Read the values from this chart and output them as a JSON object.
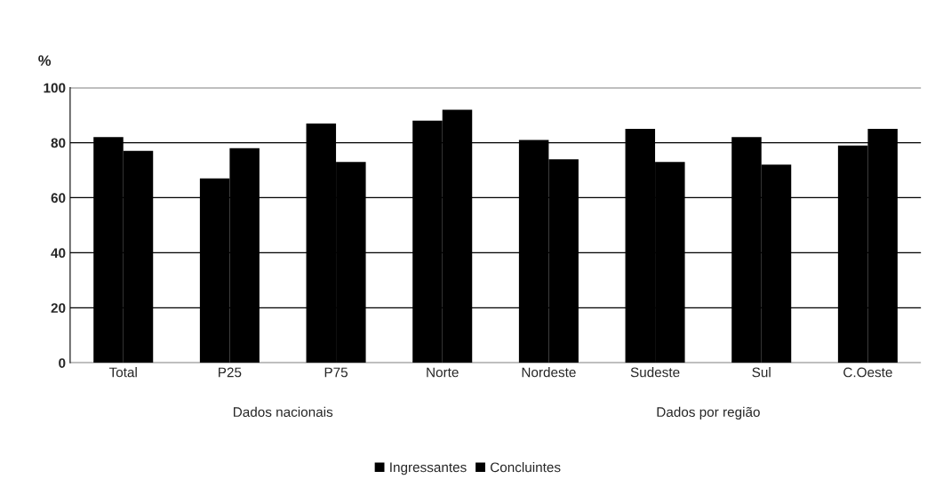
{
  "chart_data": {
    "type": "bar",
    "ylabel": "%",
    "categories": [
      "Total",
      "P25",
      "P75",
      "Norte",
      "Nordeste",
      "Sudeste",
      "Sul",
      "C.Oeste"
    ],
    "series": [
      {
        "name": "Ingressantes",
        "color": "#000000",
        "values": [
          82,
          67,
          87,
          88,
          81,
          85,
          82,
          79
        ]
      },
      {
        "name": "Concluintes",
        "color": "#000000",
        "values": [
          77,
          78,
          73,
          92,
          74,
          73,
          72,
          85
        ]
      }
    ],
    "ylim": [
      0,
      100
    ],
    "yticks": [
      0,
      20,
      40,
      60,
      80,
      100
    ],
    "grid": "y",
    "legend": "bottom",
    "annotations": [
      "Dados nacionais",
      "Dados por região"
    ]
  }
}
